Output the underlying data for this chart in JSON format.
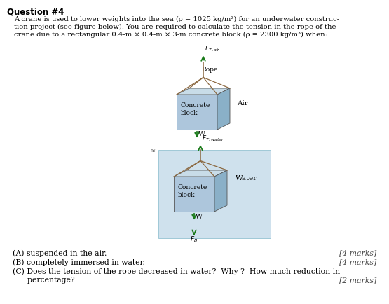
{
  "title": "Question #4",
  "bg_color": "#ffffff",
  "block_face_color": "#adc6dc",
  "block_top_color": "#c8dce8",
  "block_right_color": "#8ab0c8",
  "water_color": "#c0d8e8",
  "rope_color": "#8b6840",
  "arrow_color": "#1a7a1a",
  "air_label": "Air",
  "water_label": "Water",
  "rope_label": "Rope",
  "block_label": "Concrete\nblock",
  "W_label": "W",
  "FT_air_label": "$F_{T, air}$",
  "FT_water_label": "$F_{T, water}$",
  "FB_label": "$F_B$",
  "answer_A": "(A) suspended in the air.",
  "answer_B": "(B) completely immersed in water.",
  "answer_C1": "(C) Does the tension of the rope decreased in water?  Why ?  How much reduction in",
  "answer_C2": "      percentage?",
  "marks_A": "[4 marks]",
  "marks_B": "[4 marks]",
  "marks_C": "[2 marks]",
  "q_line1": "A crane is used to lower weights into the sea (ρ = 1025 kg/m³) for an underwater construc-",
  "q_line2": "tion project (see figure below). You are required to calculate the tension in the rope of the",
  "q_line3": "crane due to a rectangular 0.4-m × 0.4-m × 3-m concrete block (ρ = 2300 kg/m³) when:"
}
